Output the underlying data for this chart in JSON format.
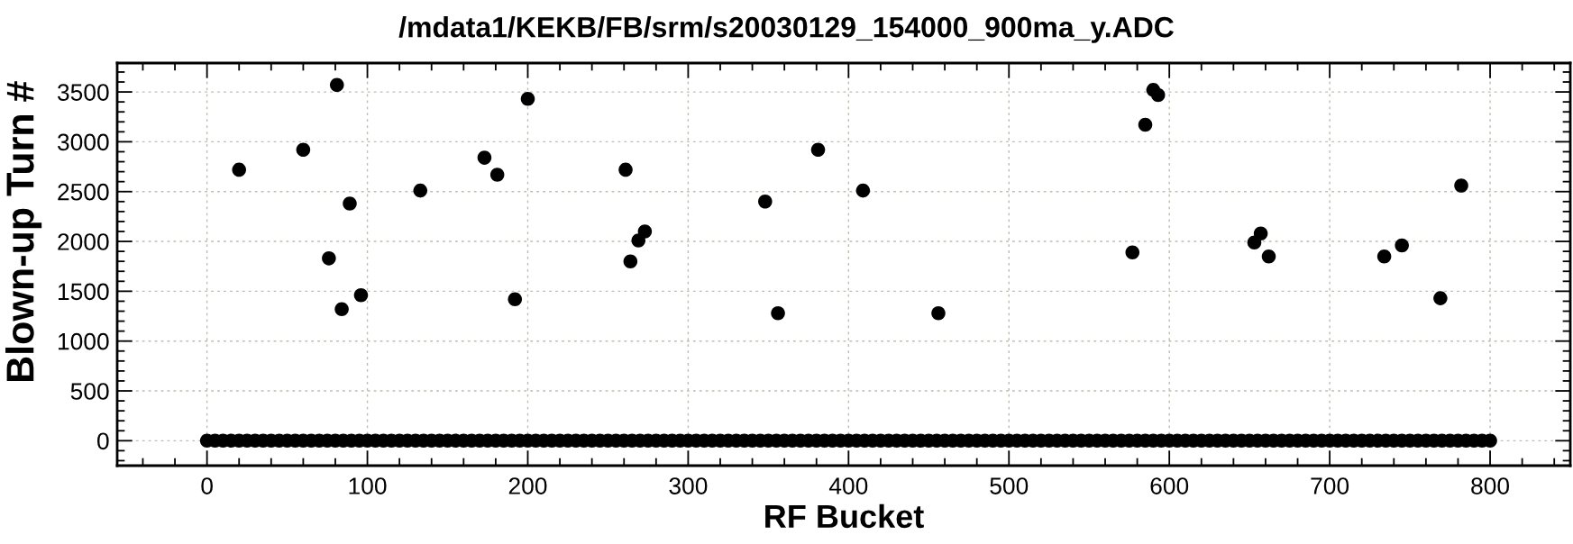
{
  "chart_data": {
    "type": "scatter",
    "title": "/mdata1/KEKB/FB/srm/s20030129_154000_900ma_y.ADC",
    "xlabel": "RF Bucket",
    "ylabel": "Blown-up Turn #",
    "xlim": [
      -56,
      850
    ],
    "ylim": [
      -250,
      3790
    ],
    "xticks": [
      {
        "value": -40,
        "label": null
      },
      {
        "value": -20,
        "label": null
      },
      0,
      {
        "value": 20,
        "label": null
      },
      {
        "value": 40,
        "label": null
      },
      {
        "value": 60,
        "label": null
      },
      {
        "value": 80,
        "label": null
      },
      100,
      {
        "value": 120,
        "label": null
      },
      {
        "value": 140,
        "label": null
      },
      {
        "value": 160,
        "label": null
      },
      {
        "value": 180,
        "label": null
      },
      200,
      {
        "value": 220,
        "label": null
      },
      {
        "value": 240,
        "label": null
      },
      {
        "value": 260,
        "label": null
      },
      {
        "value": 280,
        "label": null
      },
      300,
      {
        "value": 320,
        "label": null
      },
      {
        "value": 340,
        "label": null
      },
      {
        "value": 360,
        "label": null
      },
      {
        "value": 380,
        "label": null
      },
      400,
      {
        "value": 420,
        "label": null
      },
      {
        "value": 440,
        "label": null
      },
      {
        "value": 460,
        "label": null
      },
      {
        "value": 480,
        "label": null
      },
      500,
      {
        "value": 520,
        "label": null
      },
      {
        "value": 540,
        "label": null
      },
      {
        "value": 560,
        "label": null
      },
      {
        "value": 580,
        "label": null
      },
      600,
      {
        "value": 620,
        "label": null
      },
      {
        "value": 640,
        "label": null
      },
      {
        "value": 660,
        "label": null
      },
      {
        "value": 680,
        "label": null
      },
      700,
      {
        "value": 720,
        "label": null
      },
      {
        "value": 740,
        "label": null
      },
      {
        "value": 760,
        "label": null
      },
      {
        "value": 780,
        "label": null
      },
      800,
      {
        "value": 820,
        "label": null
      },
      {
        "value": 840,
        "label": null
      }
    ],
    "yticks": [
      {
        "value": -200,
        "label": null
      },
      {
        "value": -100,
        "label": null
      },
      0,
      {
        "value": 100,
        "label": null
      },
      {
        "value": 200,
        "label": null
      },
      {
        "value": 300,
        "label": null
      },
      {
        "value": 400,
        "label": null
      },
      500,
      {
        "value": 600,
        "label": null
      },
      {
        "value": 700,
        "label": null
      },
      {
        "value": 800,
        "label": null
      },
      {
        "value": 900,
        "label": null
      },
      1000,
      {
        "value": 1100,
        "label": null
      },
      {
        "value": 1200,
        "label": null
      },
      {
        "value": 1300,
        "label": null
      },
      {
        "value": 1400,
        "label": null
      },
      1500,
      {
        "value": 1600,
        "label": null
      },
      {
        "value": 1700,
        "label": null
      },
      {
        "value": 1800,
        "label": null
      },
      {
        "value": 1900,
        "label": null
      },
      2000,
      {
        "value": 2100,
        "label": null
      },
      {
        "value": 2200,
        "label": null
      },
      {
        "value": 2300,
        "label": null
      },
      {
        "value": 2400,
        "label": null
      },
      2500,
      {
        "value": 2600,
        "label": null
      },
      {
        "value": 2700,
        "label": null
      },
      {
        "value": 2800,
        "label": null
      },
      {
        "value": 2900,
        "label": null
      },
      3000,
      {
        "value": 3100,
        "label": null
      },
      {
        "value": 3200,
        "label": null
      },
      {
        "value": 3300,
        "label": null
      },
      {
        "value": 3400,
        "label": null
      },
      3500,
      {
        "value": 3600,
        "label": null
      },
      {
        "value": 3700,
        "label": null
      }
    ],
    "grid": true,
    "marker": "circle",
    "series": [
      {
        "color": "#000000",
        "x": [
          20,
          60,
          76,
          81,
          84,
          89,
          96,
          133,
          173,
          181,
          192,
          200,
          261,
          264,
          269,
          273,
          348,
          356,
          381,
          409,
          456,
          577,
          585,
          590,
          593,
          653,
          657,
          662,
          734,
          745,
          769,
          782
        ],
        "values": [
          2720,
          2920,
          1830,
          3570,
          1320,
          2380,
          1460,
          2510,
          2840,
          2670,
          1420,
          3430,
          2720,
          1800,
          2010,
          2100,
          2400,
          1280,
          2920,
          2510,
          1280,
          1890,
          3170,
          3520,
          3470,
          1990,
          2080,
          1850,
          1850,
          1960,
          1430,
          2560
        ]
      },
      {
        "color": "#000000",
        "x": [
          0,
          5,
          10,
          15,
          20,
          25,
          30,
          35,
          40,
          45,
          50,
          55,
          60,
          65,
          70,
          75,
          80,
          85,
          90,
          95,
          100,
          105,
          110,
          115,
          120,
          125,
          130,
          135,
          140,
          145,
          150,
          155,
          160,
          165,
          170,
          175,
          180,
          185,
          190,
          195,
          200,
          205,
          210,
          215,
          220,
          225,
          230,
          235,
          240,
          245,
          250,
          255,
          260,
          265,
          270,
          275,
          280,
          285,
          290,
          295,
          300,
          305,
          310,
          315,
          320,
          325,
          330,
          335,
          340,
          345,
          350,
          355,
          360,
          365,
          370,
          375,
          380,
          385,
          390,
          395,
          400,
          405,
          410,
          415,
          420,
          425,
          430,
          435,
          440,
          445,
          450,
          455,
          460,
          465,
          470,
          475,
          480,
          485,
          490,
          495,
          500,
          505,
          510,
          515,
          520,
          525,
          530,
          535,
          540,
          545,
          550,
          555,
          560,
          565,
          570,
          575,
          580,
          585,
          590,
          595,
          600,
          605,
          610,
          615,
          620,
          625,
          630,
          635,
          640,
          645,
          650,
          655,
          660,
          665,
          670,
          675,
          680,
          685,
          690,
          695,
          700,
          705,
          710,
          715,
          720,
          725,
          730,
          735,
          740,
          745,
          750,
          755,
          760,
          765,
          770,
          775,
          780,
          785,
          790,
          795,
          800
        ],
        "values": [
          0,
          0,
          0,
          0,
          0,
          0,
          0,
          0,
          0,
          0,
          0,
          0,
          0,
          0,
          0,
          0,
          0,
          0,
          0,
          0,
          0,
          0,
          0,
          0,
          0,
          0,
          0,
          0,
          0,
          0,
          0,
          0,
          0,
          0,
          0,
          0,
          0,
          0,
          0,
          0,
          0,
          0,
          0,
          0,
          0,
          0,
          0,
          0,
          0,
          0,
          0,
          0,
          0,
          0,
          0,
          0,
          0,
          0,
          0,
          0,
          0,
          0,
          0,
          0,
          0,
          0,
          0,
          0,
          0,
          0,
          0,
          0,
          0,
          0,
          0,
          0,
          0,
          0,
          0,
          0,
          0,
          0,
          0,
          0,
          0,
          0,
          0,
          0,
          0,
          0,
          0,
          0,
          0,
          0,
          0,
          0,
          0,
          0,
          0,
          0,
          0,
          0,
          0,
          0,
          0,
          0,
          0,
          0,
          0,
          0,
          0,
          0,
          0,
          0,
          0,
          0,
          0,
          0,
          0,
          0,
          0,
          0,
          0,
          0,
          0,
          0,
          0,
          0,
          0,
          0,
          0,
          0,
          0,
          0,
          0,
          0,
          0,
          0,
          0,
          0,
          0,
          0,
          0,
          0,
          0,
          0,
          0,
          0,
          0,
          0,
          0,
          0,
          0,
          0,
          0,
          0,
          0,
          0,
          0,
          0,
          0
        ]
      }
    ]
  }
}
